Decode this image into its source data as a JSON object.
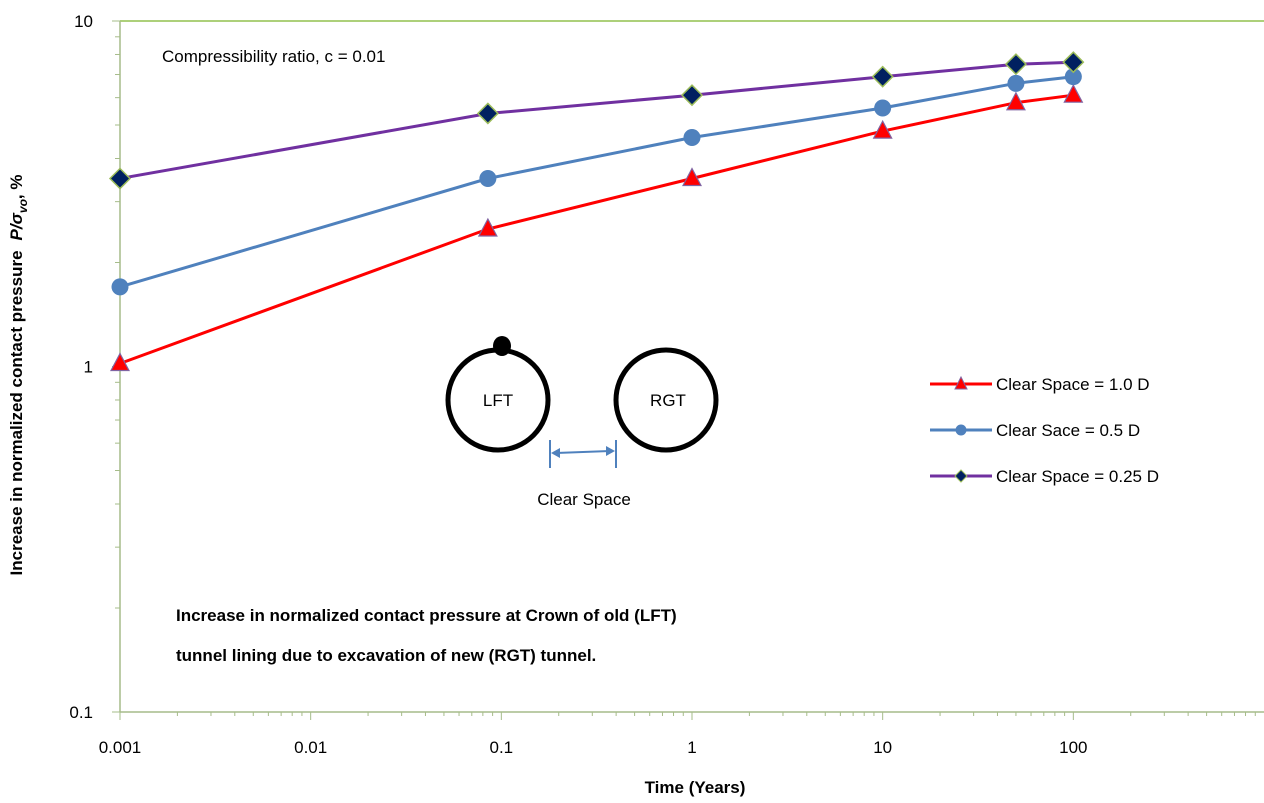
{
  "chart_data": {
    "type": "line",
    "x_scale": "log",
    "y_scale": "log",
    "xlabel": "Time (Years)",
    "ylabel": "Increase in normalized contact pressure",
    "ylabel_math": "P/σ",
    "ylabel_sub": "vo",
    "ylabel_suffix": ", %",
    "xlim": [
      0.001,
      1000
    ],
    "ylim": [
      0.1,
      10
    ],
    "x_ticks": [
      "0.001",
      "0.01",
      "0.1",
      "1",
      "10",
      "100"
    ],
    "y_ticks": [
      "0.1",
      "1",
      "10"
    ],
    "grid": "top line only",
    "legend_position": "right",
    "annotation_top": "Compressibility ratio, c = 0.01",
    "caption_line1": "Increase in normalized contact pressure at Crown of old (LFT)",
    "caption_line2": "tunnel lining due to excavation of new (RGT) tunnel.",
    "series": [
      {
        "name": "Clear Space = 1.0 D",
        "color": "#ff0000",
        "marker": "triangle",
        "marker_color": "#ff0000",
        "x": [
          0.001,
          0.085,
          1,
          10,
          50,
          100
        ],
        "y": [
          1.02,
          2.5,
          3.5,
          4.8,
          5.8,
          6.1
        ]
      },
      {
        "name": "Clear Sace = 0.5 D",
        "color": "#4f81bd",
        "marker": "circle",
        "marker_color": "#4f81bd",
        "x": [
          0.001,
          0.085,
          1,
          10,
          50,
          100
        ],
        "y": [
          1.7,
          3.5,
          4.6,
          5.6,
          6.6,
          6.9
        ]
      },
      {
        "name": "Clear Space = 0.25 D",
        "color": "#7030a0",
        "marker": "diamond",
        "marker_color": "#002060",
        "x": [
          0.001,
          0.085,
          1,
          10,
          50,
          100
        ],
        "y": [
          3.5,
          5.4,
          6.1,
          6.9,
          7.5,
          7.6
        ]
      }
    ]
  },
  "diagram": {
    "left_label": "LFT",
    "right_label": "RGT",
    "space_label": "Clear Space"
  }
}
